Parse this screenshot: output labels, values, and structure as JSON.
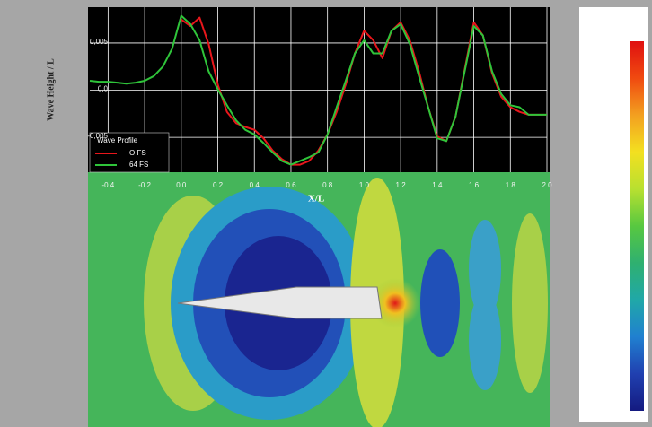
{
  "chart_data": {
    "type": "line",
    "y_label": "Wave Height / L",
    "x_label": "X/L",
    "legend_title": "Wave Profile",
    "legend": "lower left",
    "grid": true,
    "xlim": [
      -0.5,
      2.0
    ],
    "ylim": [
      -0.0087,
      0.0088
    ],
    "xticks": [
      -0.4,
      -0.2,
      {
        "value": 0,
        "label": "0.0"
      },
      0.2,
      0.4,
      0.6,
      0.8,
      {
        "value": 1,
        "label": "1.0"
      },
      1.2,
      1.4,
      1.6,
      1.8,
      {
        "value": 2,
        "label": "2.0"
      }
    ],
    "yticks": [
      {
        "value": -0.005,
        "label": "-0,005"
      },
      {
        "value": 0,
        "label": "0,0"
      },
      {
        "value": 0.005,
        "label": "0,005"
      }
    ],
    "x": [
      -0.5,
      -0.45,
      -0.4,
      -0.35,
      -0.3,
      -0.25,
      -0.2,
      -0.15,
      -0.1,
      -0.05,
      0.0,
      0.05,
      0.1,
      0.15,
      0.2,
      0.25,
      0.3,
      0.35,
      0.4,
      0.45,
      0.5,
      0.55,
      0.6,
      0.65,
      0.7,
      0.75,
      0.8,
      0.85,
      0.9,
      0.95,
      1.0,
      1.05,
      1.1,
      1.15,
      1.2,
      1.25,
      1.3,
      1.35,
      1.4,
      1.45,
      1.5,
      1.55,
      1.6,
      1.65,
      1.7,
      1.75,
      1.8,
      1.85,
      1.9,
      1.95,
      2.0
    ],
    "series": [
      {
        "name": "O FS",
        "color": "#e8161b",
        "values": [
          null,
          null,
          null,
          null,
          null,
          null,
          null,
          null,
          null,
          null,
          0.0075,
          0.0068,
          0.0077,
          0.0049,
          0.0006,
          -0.0023,
          -0.0035,
          -0.0039,
          -0.0042,
          -0.0051,
          -0.0064,
          -0.0073,
          -0.0079,
          -0.0079,
          -0.0075,
          -0.0064,
          -0.0047,
          -0.0023,
          0.0006,
          0.0039,
          0.0063,
          0.0053,
          0.0034,
          0.0063,
          0.0072,
          0.0053,
          0.002,
          -0.0018,
          -0.0049,
          -0.0054,
          -0.0028,
          0.0022,
          0.0072,
          0.0058,
          0.0018,
          -0.0007,
          -0.0018,
          -0.0023,
          -0.0026,
          -0.0026,
          -0.0026
        ]
      },
      {
        "name": "64 FS",
        "color": "#2fc43a",
        "values": [
          0.001,
          0.0009,
          0.0009,
          0.0008,
          0.0007,
          0.0008,
          0.001,
          0.0015,
          0.0025,
          0.0044,
          0.0079,
          0.007,
          0.0053,
          0.002,
          0.0001,
          -0.0016,
          -0.0032,
          -0.0042,
          -0.0047,
          -0.0056,
          -0.0066,
          -0.0075,
          -0.0079,
          -0.0075,
          -0.0071,
          -0.0066,
          -0.0047,
          -0.0018,
          0.001,
          0.0039,
          0.0053,
          0.0039,
          0.0039,
          0.0063,
          0.007,
          0.0049,
          0.0015,
          -0.0018,
          -0.0051,
          -0.0054,
          -0.0028,
          0.002,
          0.0068,
          0.0058,
          0.002,
          -0.0004,
          -0.0016,
          -0.0018,
          -0.0026,
          -0.0026,
          -0.0026
        ]
      }
    ]
  }
}
